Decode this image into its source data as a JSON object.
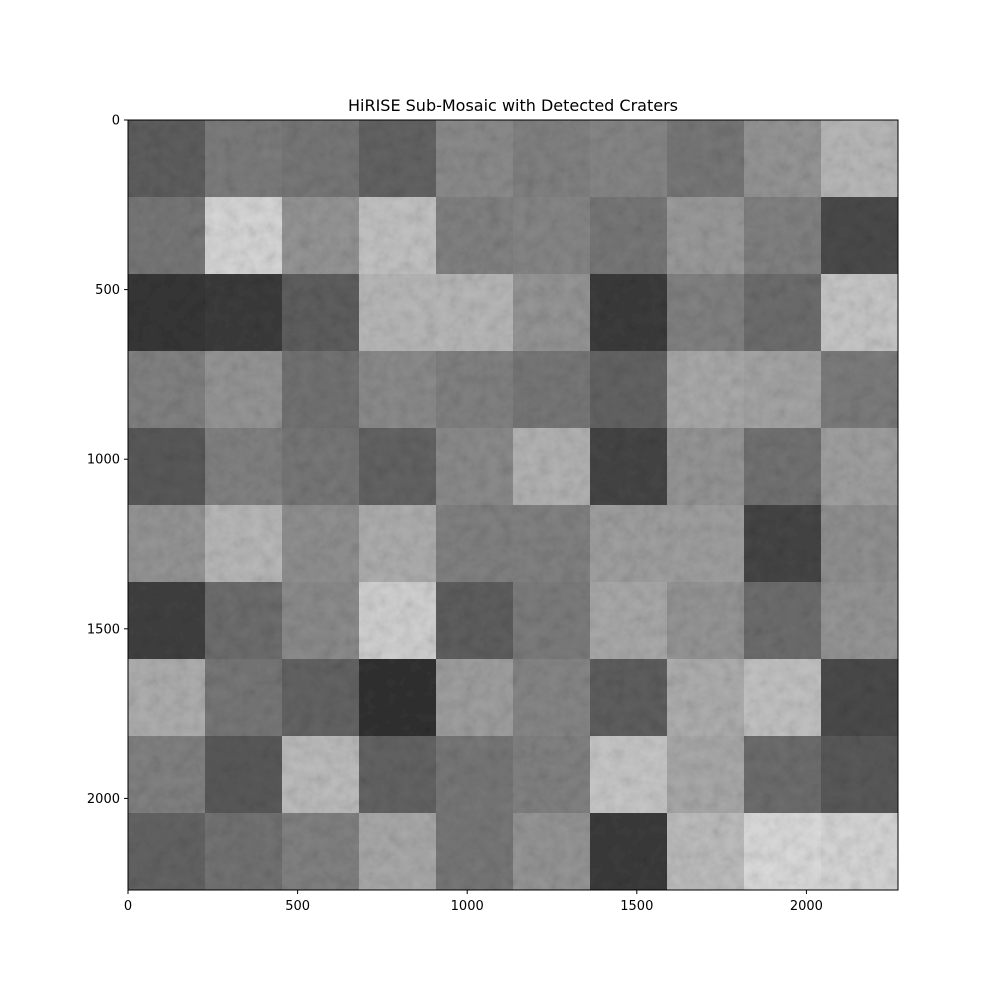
{
  "figure": {
    "title": "HiRISE Sub-Mosaic with Detected Craters"
  },
  "axes": {
    "x_ticks": [
      {
        "value": 0,
        "label": "0"
      },
      {
        "value": 500,
        "label": "500"
      },
      {
        "value": 1000,
        "label": "1000"
      },
      {
        "value": 1500,
        "label": "1500"
      },
      {
        "value": 2000,
        "label": "2000"
      }
    ],
    "y_ticks": [
      {
        "value": 0,
        "label": "0"
      },
      {
        "value": 500,
        "label": "500"
      },
      {
        "value": 1000,
        "label": "1000"
      },
      {
        "value": 1500,
        "label": "1500"
      },
      {
        "value": 2000,
        "label": "2000"
      }
    ],
    "x_range": [
      0,
      2270
    ],
    "y_range": [
      2270,
      0
    ]
  },
  "mosaic": {
    "rows": 10,
    "cols": 10,
    "colormap": "grayscale",
    "tile_gray_levels": [
      [
        95,
        125,
        120,
        100,
        140,
        130,
        135,
        120,
        150,
        185
      ],
      [
        120,
        215,
        150,
        195,
        130,
        135,
        120,
        155,
        130,
        75
      ],
      [
        55,
        60,
        95,
        185,
        185,
        150,
        60,
        130,
        110,
        200
      ],
      [
        130,
        150,
        115,
        140,
        130,
        120,
        100,
        170,
        165,
        125
      ],
      [
        90,
        130,
        120,
        100,
        140,
        180,
        70,
        150,
        115,
        160
      ],
      [
        150,
        185,
        145,
        175,
        130,
        130,
        160,
        160,
        70,
        145
      ],
      [
        65,
        110,
        140,
        210,
        95,
        125,
        170,
        150,
        110,
        150
      ],
      [
        175,
        120,
        100,
        50,
        160,
        135,
        95,
        175,
        195,
        75
      ],
      [
        130,
        90,
        190,
        100,
        120,
        130,
        200,
        170,
        110,
        90
      ],
      [
        100,
        115,
        130,
        170,
        120,
        150,
        60,
        190,
        220,
        215
      ]
    ]
  }
}
